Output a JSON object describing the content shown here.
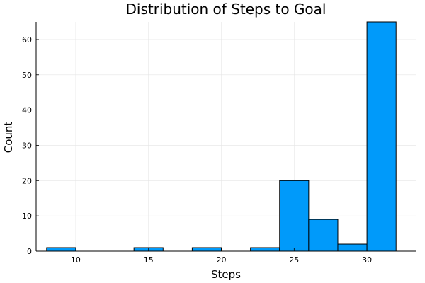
{
  "chart_data": {
    "type": "bar",
    "title": "Distribution of Steps to Goal",
    "xlabel": "Steps",
    "ylabel": "Count",
    "bin_width": 2,
    "bins": [
      {
        "start": 8,
        "end": 10,
        "count": 1
      },
      {
        "start": 10,
        "end": 12,
        "count": 0
      },
      {
        "start": 12,
        "end": 14,
        "count": 0
      },
      {
        "start": 14,
        "end": 16,
        "count": 1
      },
      {
        "start": 16,
        "end": 18,
        "count": 0
      },
      {
        "start": 18,
        "end": 20,
        "count": 1
      },
      {
        "start": 20,
        "end": 22,
        "count": 0
      },
      {
        "start": 22,
        "end": 24,
        "count": 1
      },
      {
        "start": 24,
        "end": 26,
        "count": 20
      },
      {
        "start": 26,
        "end": 28,
        "count": 9
      },
      {
        "start": 28,
        "end": 30,
        "count": 2
      },
      {
        "start": 30,
        "end": 32,
        "count": 65
      }
    ],
    "xlim": [
      7.28,
      33.4
    ],
    "ylim": [
      0,
      65
    ],
    "xticks": [
      10,
      15,
      20,
      25,
      30
    ],
    "yticks": [
      0,
      10,
      20,
      30,
      40,
      50,
      60
    ],
    "grid": true,
    "legend": "none",
    "bar_color": "#009AFA",
    "bar_edge_color": "#000000",
    "grid_color": "#E5E5E5"
  }
}
